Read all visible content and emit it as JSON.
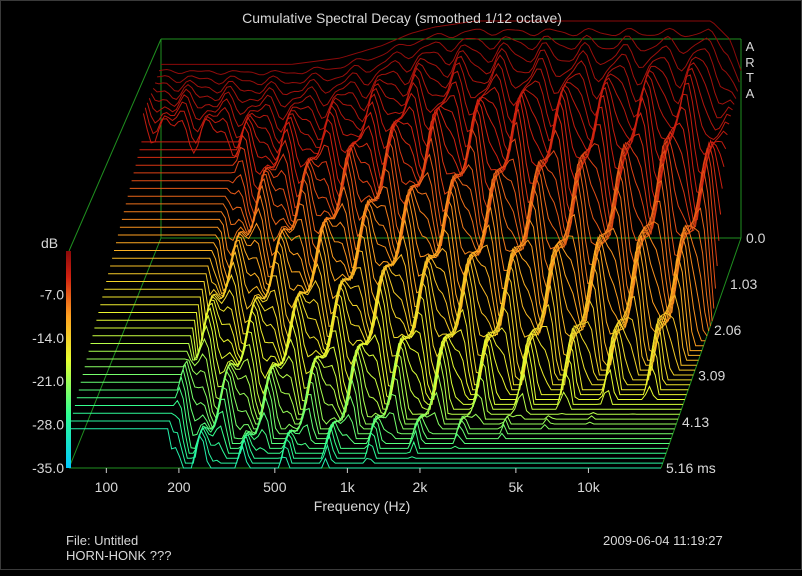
{
  "chart_data": {
    "type": "waterfall",
    "title": "Cumulative Spectral Decay (smoothed 1/12 octave)",
    "brand": "ARTA",
    "xlabel": "Frequency (Hz)",
    "x_scale": "log",
    "xlim": [
      70,
      20000
    ],
    "x_ticks": [
      {
        "value": 100,
        "label": "100"
      },
      {
        "value": 200,
        "label": "200"
      },
      {
        "value": 500,
        "label": "500"
      },
      {
        "value": 1000,
        "label": "1k"
      },
      {
        "value": 2000,
        "label": "2k"
      },
      {
        "value": 5000,
        "label": "5k"
      },
      {
        "value": 10000,
        "label": "10k"
      }
    ],
    "ylabel": "dB",
    "ylim": [
      -35,
      0
    ],
    "y_ticks": [
      {
        "value": -7,
        "label": "-7.0"
      },
      {
        "value": -14,
        "label": "-14.0"
      },
      {
        "value": -21,
        "label": "-21.0"
      },
      {
        "value": -28,
        "label": "-28.0"
      },
      {
        "value": -35,
        "label": "-35.0"
      }
    ],
    "time_ticks": [
      {
        "value": 0.0,
        "label": "0.0"
      },
      {
        "value": 1.03,
        "label": "1.03"
      },
      {
        "value": 2.06,
        "label": "2.06"
      },
      {
        "value": 3.09,
        "label": "3.09"
      },
      {
        "value": 4.13,
        "label": "4.13"
      },
      {
        "value": 5.16,
        "label": "5.16 ms"
      }
    ],
    "time_range_ms": [
      0,
      5.16
    ],
    "initial_response": [
      {
        "f": 70,
        "db": -7
      },
      {
        "f": 100,
        "db": -7
      },
      {
        "f": 150,
        "db": -7
      },
      {
        "f": 250,
        "db": -7
      },
      {
        "f": 400,
        "db": -6
      },
      {
        "f": 600,
        "db": -4
      },
      {
        "f": 800,
        "db": -2
      },
      {
        "f": 1000,
        "db": -1
      },
      {
        "f": 1500,
        "db": 0
      },
      {
        "f": 2000,
        "db": 0
      },
      {
        "f": 3000,
        "db": 0
      },
      {
        "f": 5000,
        "db": 0
      },
      {
        "f": 8000,
        "db": 0
      },
      {
        "f": 10000,
        "db": 0
      },
      {
        "f": 15000,
        "db": 0
      },
      {
        "f": 18000,
        "db": -3
      },
      {
        "f": 20000,
        "db": -8
      }
    ],
    "colormap": [
      "#00c8ff",
      "#30ff90",
      "#e8ff30",
      "#ffa020",
      "#d02010",
      "#8a0a0a"
    ],
    "grid": false,
    "legend": "none"
  },
  "footer": {
    "file": "File: Untitled",
    "note": "HORN-HONK ???",
    "timestamp": "2009-06-04  11:19:27"
  }
}
